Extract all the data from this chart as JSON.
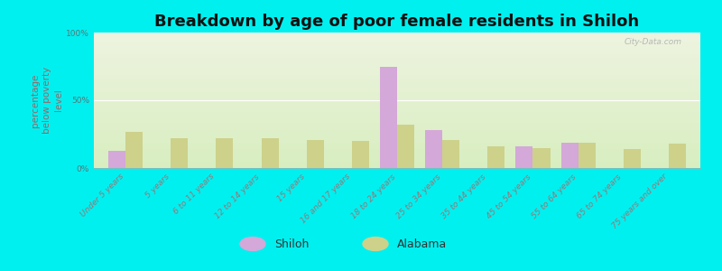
{
  "title": "Breakdown by age of poor female residents in Shiloh",
  "ylabel": "percentage\nbelow poverty\nlevel",
  "categories": [
    "Under 5 years",
    "5 years",
    "6 to 11 years",
    "12 to 14 years",
    "15 years",
    "16 and 17 years",
    "18 to 24 years",
    "25 to 34 years",
    "35 to 44 years",
    "45 to 54 years",
    "55 to 64 years",
    "65 to 74 years",
    "75 years and over"
  ],
  "shiloh_values": [
    13,
    0,
    0,
    0,
    0,
    0,
    75,
    28,
    0,
    16,
    19,
    0,
    0
  ],
  "alabama_values": [
    27,
    22,
    22,
    22,
    21,
    20,
    32,
    21,
    16,
    15,
    19,
    14,
    18
  ],
  "shiloh_color": "#d4a8d8",
  "alabama_color": "#cdd18a",
  "background_color": "#00f0f0",
  "plot_bg_top": "#eef4e0",
  "plot_bg_bottom": "#d8eec0",
  "ylim": [
    0,
    100
  ],
  "yticks": [
    0,
    50,
    100
  ],
  "ytick_labels": [
    "0%",
    "50%",
    "100%"
  ],
  "bar_width": 0.38,
  "title_fontsize": 13,
  "axis_label_fontsize": 7.5,
  "tick_fontsize": 6.5,
  "watermark": "City-Data.com"
}
